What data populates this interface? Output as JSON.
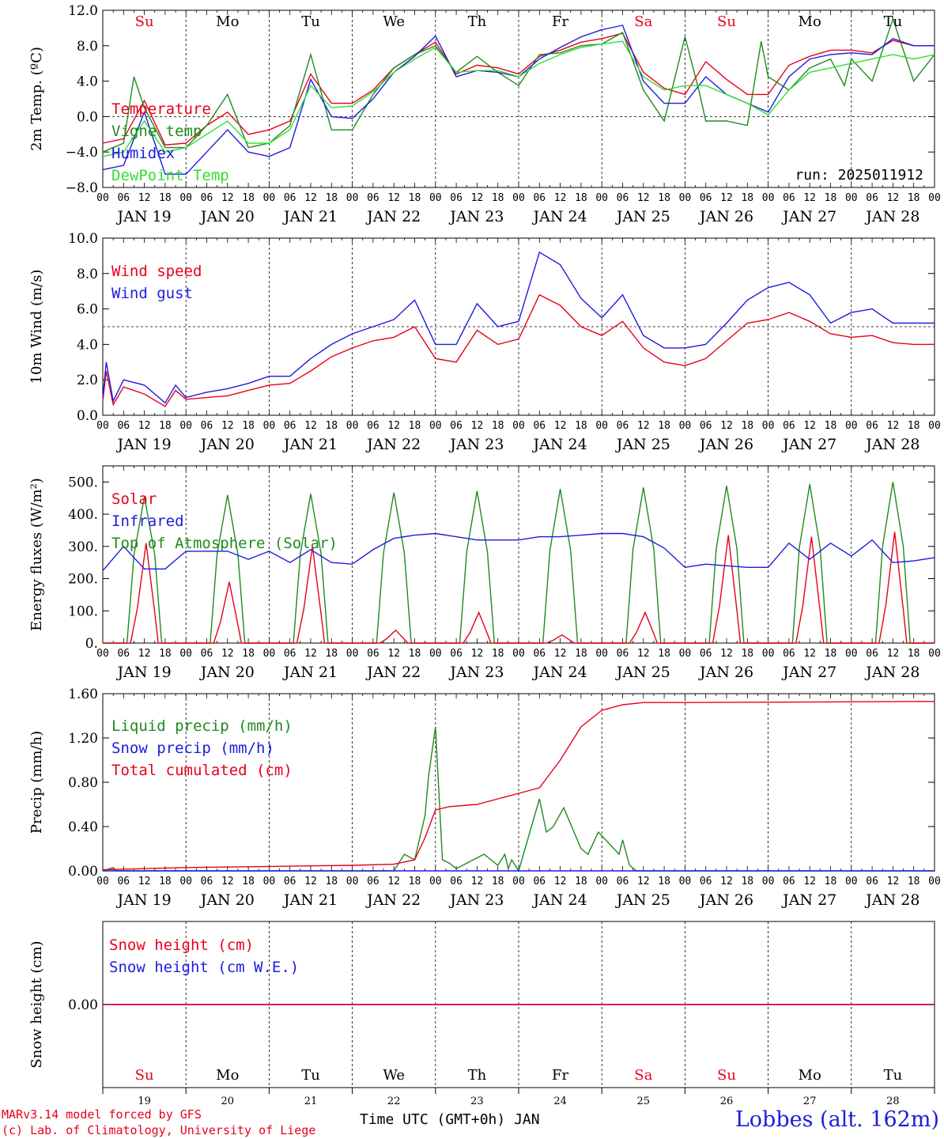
{
  "colors": {
    "red": "#e8001a",
    "green": "#1f8a1f",
    "blue": "#1c1ce0",
    "lightgreen": "#33dd33",
    "black": "#000000",
    "weekend": "#e8001a"
  },
  "day_abbr": [
    "Su",
    "Mo",
    "Tu",
    "We",
    "Th",
    "Fr",
    "Sa",
    "Su",
    "Mo",
    "Tu"
  ],
  "day_is_weekend": [
    true,
    false,
    false,
    false,
    false,
    false,
    true,
    true,
    false,
    false
  ],
  "day_labels": [
    "JAN 19",
    "JAN 20",
    "JAN 21",
    "JAN 22",
    "JAN 23",
    "JAN 24",
    "JAN 25",
    "JAN 26",
    "JAN 27",
    "JAN 28"
  ],
  "day_numbers": [
    "19",
    "20",
    "21",
    "22",
    "23",
    "24",
    "25",
    "26",
    "27",
    "28"
  ],
  "hour_ticks": [
    "00",
    "06",
    "12",
    "18"
  ],
  "footer": {
    "model_line": "MARv3.14 model forced by GFS",
    "lab_line": "(c) Lab. of Climatology, University of Liege",
    "time_axis": "Time UTC (GMT+0h) JAN",
    "station": "Lobbes (alt. 162m)"
  },
  "chart_data": [
    {
      "type": "line",
      "ylabel": "2m Temp. (ºC)",
      "ylim": [
        -8,
        12
      ],
      "yticks": [
        "12.0",
        "8.0",
        "4.0",
        "0.0",
        "−4.0",
        "−8.0"
      ],
      "reference_line": 0,
      "annotation": "run: 2025011912",
      "x_unit": "hours since JAN 19 00 UTC",
      "series": [
        {
          "name": "Temperature",
          "color": "red",
          "x": [
            0,
            6,
            12,
            18,
            24,
            30,
            36,
            42,
            48,
            54,
            60,
            66,
            72,
            78,
            84,
            90,
            96,
            102,
            108,
            114,
            120,
            126,
            132,
            138,
            144,
            150,
            156,
            162,
            168,
            174,
            180,
            186,
            192,
            198,
            204,
            210,
            216,
            222,
            228,
            234,
            240
          ],
          "values": [
            -3,
            -2.5,
            1.8,
            -3.2,
            -3,
            -1,
            0.5,
            -2,
            -1.5,
            -0.5,
            4.8,
            1.5,
            1.5,
            3,
            5.5,
            7,
            8.4,
            4.8,
            5.8,
            5.5,
            4.8,
            6.8,
            7.5,
            8.4,
            8.8,
            9.4,
            5,
            3.2,
            2.5,
            6.2,
            4.2,
            2.5,
            2.5,
            5.8,
            6.8,
            7.5,
            7.5,
            7.2,
            8.6,
            8,
            8
          ]
        },
        {
          "name": "Vigne temp",
          "color": "green",
          "x": [
            0,
            6,
            9,
            12,
            18,
            24,
            30,
            36,
            42,
            48,
            54,
            60,
            66,
            72,
            78,
            84,
            90,
            96,
            102,
            108,
            114,
            120,
            126,
            132,
            138,
            144,
            150,
            156,
            162,
            168,
            172,
            174,
            180,
            186,
            190,
            192,
            198,
            204,
            210,
            214,
            216,
            222,
            228,
            234,
            240
          ],
          "values": [
            -4,
            -3,
            4.5,
            1,
            -3.5,
            -3.5,
            -1,
            2.5,
            -3.5,
            -3,
            -1,
            7,
            -1.5,
            -1.5,
            2.5,
            5.5,
            7,
            8,
            5,
            6.8,
            5,
            3.5,
            7,
            7.2,
            8,
            8.2,
            9.5,
            3,
            -0.5,
            9,
            3,
            -0.5,
            -0.5,
            -1,
            8.5,
            4.5,
            3,
            5.5,
            6.5,
            3.5,
            6.5,
            4,
            11,
            4,
            7
          ]
        },
        {
          "name": "Humidex",
          "color": "blue",
          "x": [
            0,
            6,
            12,
            18,
            24,
            30,
            36,
            42,
            48,
            54,
            60,
            66,
            72,
            78,
            84,
            90,
            96,
            102,
            108,
            114,
            120,
            126,
            132,
            138,
            144,
            150,
            156,
            162,
            168,
            174,
            180,
            186,
            192,
            198,
            204,
            210,
            216,
            222,
            228,
            234,
            240
          ],
          "values": [
            -6,
            -5.5,
            0.5,
            -6.5,
            -6.5,
            -4,
            -1.5,
            -4,
            -4.5,
            -3.5,
            4.2,
            0,
            -0.2,
            2,
            5,
            6.8,
            9.1,
            4.5,
            5.2,
            5,
            4.5,
            6.5,
            7.8,
            9,
            9.8,
            10.3,
            4,
            1.5,
            1.5,
            4.5,
            2.5,
            1.5,
            0.5,
            4.5,
            6.5,
            7,
            7.2,
            7,
            8.8,
            8,
            8
          ]
        },
        {
          "name": "DewPoint Temp",
          "color": "lightgreen",
          "x": [
            0,
            6,
            12,
            18,
            24,
            30,
            36,
            42,
            48,
            54,
            60,
            66,
            72,
            78,
            84,
            90,
            96,
            102,
            108,
            114,
            120,
            126,
            132,
            138,
            144,
            150,
            156,
            162,
            168,
            174,
            180,
            186,
            192,
            198,
            204,
            210,
            216,
            222,
            228,
            234,
            240
          ],
          "values": [
            -4.5,
            -4,
            -0.5,
            -4,
            -3.5,
            -2,
            -0.5,
            -3,
            -3,
            -1.5,
            3.5,
            1,
            1.2,
            2.8,
            5,
            6.5,
            7.8,
            5,
            5.2,
            5.2,
            4.5,
            6,
            7,
            7.8,
            8.2,
            8.5,
            4.5,
            3,
            3.5,
            3.5,
            2.5,
            1.5,
            0.2,
            3,
            5,
            5.5,
            6,
            6.5,
            7,
            6.5,
            7
          ]
        }
      ]
    },
    {
      "type": "line",
      "ylabel": "10m Wind (m/s)",
      "ylim": [
        0,
        10
      ],
      "yticks": [
        "10.0",
        "8.0",
        "6.0",
        "4.0",
        "2.0",
        "0.0"
      ],
      "reference_line": 5,
      "x_unit": "hours since JAN 19 00 UTC",
      "series": [
        {
          "name": "Wind speed",
          "color": "red",
          "x": [
            0,
            1,
            3,
            6,
            12,
            18,
            21,
            24,
            30,
            36,
            42,
            48,
            54,
            60,
            66,
            72,
            78,
            84,
            90,
            96,
            102,
            108,
            114,
            120,
            126,
            132,
            138,
            144,
            150,
            156,
            162,
            168,
            174,
            180,
            186,
            192,
            198,
            204,
            210,
            216,
            222,
            228,
            234,
            240
          ],
          "values": [
            0.8,
            2.5,
            0.6,
            1.6,
            1.2,
            0.5,
            1.4,
            0.9,
            1,
            1.1,
            1.4,
            1.7,
            1.8,
            2.5,
            3.3,
            3.8,
            4.2,
            4.4,
            5,
            3.2,
            3,
            4.8,
            4,
            4.3,
            6.8,
            6.2,
            5,
            4.5,
            5.3,
            3.8,
            3,
            2.8,
            3.2,
            4.2,
            5.2,
            5.4,
            5.8,
            5.3,
            4.6,
            4.4,
            4.5,
            4.1,
            4,
            4
          ]
        },
        {
          "name": "Wind gust",
          "color": "blue",
          "x": [
            0,
            1,
            3,
            6,
            12,
            18,
            21,
            24,
            30,
            36,
            42,
            48,
            54,
            60,
            66,
            72,
            78,
            84,
            90,
            96,
            102,
            108,
            114,
            120,
            126,
            132,
            138,
            144,
            150,
            156,
            162,
            168,
            174,
            180,
            186,
            192,
            198,
            204,
            210,
            216,
            222,
            228,
            234,
            240
          ],
          "values": [
            1,
            3,
            0.8,
            2,
            1.7,
            0.7,
            1.7,
            1,
            1.3,
            1.5,
            1.8,
            2.2,
            2.2,
            3.2,
            4,
            4.6,
            5,
            5.4,
            6.5,
            4,
            4,
            6.3,
            5,
            5.3,
            9.2,
            8.5,
            6.6,
            5.5,
            6.8,
            4.5,
            3.8,
            3.8,
            4,
            5.2,
            6.5,
            7.2,
            7.5,
            6.8,
            5.2,
            5.8,
            6,
            5.2,
            5.2,
            5.2
          ]
        }
      ]
    },
    {
      "type": "line",
      "ylabel": "Energy fluxes (W/m²)",
      "ylim": [
        0,
        500
      ],
      "yticks": [
        "500.",
        "400.",
        "300.",
        "200.",
        "100.",
        "0."
      ],
      "x_unit": "hours since JAN 19 00 UTC",
      "series": [
        {
          "name": "Solar",
          "color": "red",
          "solar_peaks": [
            310,
            190,
            300,
            40,
            95,
            25,
            95,
            335,
            330,
            345
          ]
        },
        {
          "name": "Infrared",
          "color": "blue",
          "x": [
            0,
            6,
            12,
            18,
            24,
            30,
            36,
            42,
            48,
            54,
            60,
            66,
            72,
            78,
            84,
            90,
            96,
            102,
            108,
            114,
            120,
            126,
            132,
            138,
            144,
            150,
            156,
            162,
            168,
            174,
            180,
            186,
            192,
            198,
            204,
            210,
            216,
            222,
            228,
            234,
            240
          ],
          "values": [
            225,
            300,
            230,
            230,
            285,
            285,
            285,
            260,
            285,
            250,
            290,
            250,
            245,
            290,
            325,
            335,
            340,
            330,
            320,
            320,
            320,
            330,
            330,
            335,
            340,
            340,
            330,
            295,
            235,
            245,
            240,
            235,
            235,
            310,
            260,
            310,
            270,
            320,
            250,
            255,
            265
          ]
        },
        {
          "name": "Top of Atmosphere (Solar)",
          "color": "green",
          "toa_peaks": [
            455,
            460,
            463,
            467,
            472,
            478,
            483,
            488,
            493,
            500
          ]
        }
      ]
    },
    {
      "type": "line",
      "ylabel": "Precip (mm/h)",
      "ylim": [
        0,
        1.6
      ],
      "yticks": [
        "1.60",
        "1.20",
        "0.80",
        "0.40",
        "0.00"
      ],
      "x_unit": "hours since JAN 19 00 UTC",
      "series": [
        {
          "name": "Liquid precip (mm/h)",
          "color": "green",
          "x": [
            0,
            3,
            4,
            6,
            84,
            87,
            90,
            93,
            94,
            96,
            98,
            100,
            102,
            110,
            114,
            116,
            117,
            118,
            120,
            126,
            128,
            130,
            133,
            136,
            138,
            140,
            143,
            146,
            149,
            150,
            152,
            154,
            156,
            158,
            160,
            162,
            240
          ],
          "values": [
            0,
            0.03,
            0,
            0,
            0,
            0.15,
            0.1,
            0.5,
            0.85,
            1.3,
            0.1,
            0.07,
            0.02,
            0.15,
            0.05,
            0.15,
            0.02,
            0.1,
            0,
            0.65,
            0.35,
            0.4,
            0.57,
            0.35,
            0.2,
            0.15,
            0.35,
            0.25,
            0.15,
            0.28,
            0.05,
            0,
            0,
            0,
            0,
            0,
            0
          ]
        },
        {
          "name": "Snow precip (mm/h)",
          "color": "blue",
          "x": [
            0,
            240
          ],
          "values": [
            0,
            0
          ]
        },
        {
          "name": "Total cumulated (cm)",
          "color": "red",
          "x": [
            0,
            12,
            24,
            48,
            72,
            84,
            90,
            93,
            96,
            100,
            108,
            114,
            120,
            126,
            132,
            138,
            144,
            150,
            156,
            168,
            240
          ],
          "values": [
            0.01,
            0.02,
            0.03,
            0.04,
            0.05,
            0.06,
            0.1,
            0.3,
            0.55,
            0.58,
            0.6,
            0.65,
            0.7,
            0.75,
            1.0,
            1.3,
            1.45,
            1.5,
            1.52,
            1.52,
            1.53
          ]
        }
      ]
    },
    {
      "type": "line",
      "ylabel": "Snow height (cm)",
      "yticks": [
        "0.00"
      ],
      "x_unit": "hours since JAN 19 00 UTC",
      "series": [
        {
          "name": "Snow height (cm)",
          "color": "red",
          "x": [
            0,
            240
          ],
          "values": [
            0,
            0
          ]
        },
        {
          "name": "Snow height (cm W.E.)",
          "color": "blue",
          "x": [
            0,
            240
          ],
          "values": [
            0,
            0
          ]
        }
      ]
    }
  ]
}
